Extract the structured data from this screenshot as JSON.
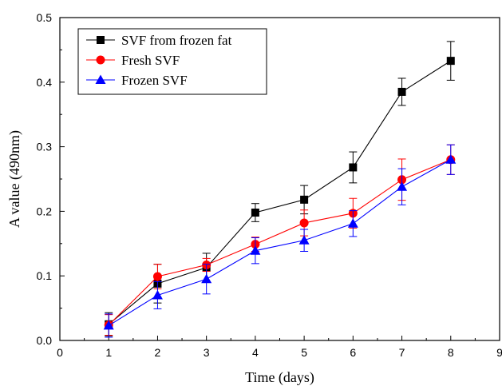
{
  "chart_data": {
    "type": "line",
    "title": "",
    "xlabel": "Time (days)",
    "ylabel": "A value (490nm)",
    "xlim": [
      0,
      9
    ],
    "ylim": [
      0.0,
      0.5
    ],
    "x_ticks": [
      "0",
      "1",
      "2",
      "3",
      "4",
      "5",
      "6",
      "7",
      "8",
      "9"
    ],
    "y_ticks": [
      "0.0",
      "0.1",
      "0.2",
      "0.3",
      "0.4",
      "0.5"
    ],
    "grid": false,
    "legend_position": "top-left",
    "x": [
      1,
      2,
      3,
      4,
      5,
      6,
      7,
      8
    ],
    "series": [
      {
        "name": "SVF from frozen fat",
        "color": "#000000",
        "marker": "square",
        "values": [
          0.025,
          0.088,
          0.113,
          0.198,
          0.218,
          0.268,
          0.385,
          0.433
        ],
        "errors": [
          0.018,
          0.03,
          0.022,
          0.014,
          0.022,
          0.024,
          0.021,
          0.03
        ]
      },
      {
        "name": "Fresh SVF",
        "color": "#ff0000",
        "marker": "circle",
        "values": [
          0.024,
          0.099,
          0.117,
          0.149,
          0.182,
          0.197,
          0.249,
          0.28
        ],
        "errors": [
          0.016,
          0.019,
          0.01,
          0.011,
          0.02,
          0.023,
          0.032,
          0.023
        ]
      },
      {
        "name": "Frozen SVF",
        "color": "#0000ff",
        "marker": "triangle",
        "values": [
          0.023,
          0.07,
          0.095,
          0.139,
          0.155,
          0.181,
          0.238,
          0.28
        ],
        "errors": [
          0.018,
          0.021,
          0.023,
          0.02,
          0.017,
          0.02,
          0.028,
          0.023
        ]
      }
    ]
  }
}
